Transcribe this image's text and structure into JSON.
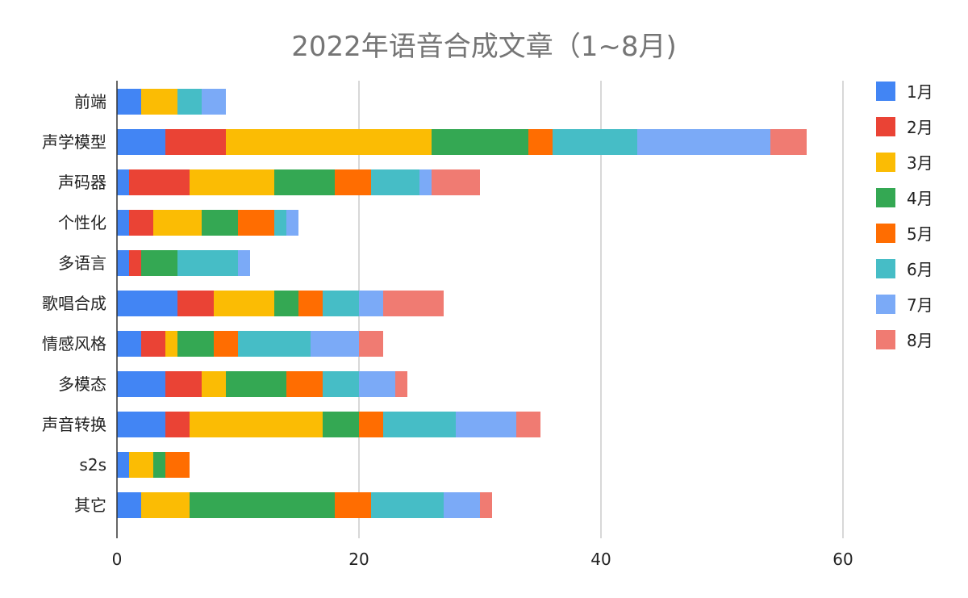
{
  "chart_data": {
    "type": "bar",
    "orientation": "horizontal",
    "stacked": true,
    "title": "2022年语音合成文章（1~8月)",
    "xlabel": "",
    "ylabel": "",
    "xlim": [
      0,
      60
    ],
    "x_ticks": [
      0,
      20,
      40,
      60
    ],
    "grid": true,
    "legend_position": "right",
    "categories": [
      "前端",
      "声学模型",
      "声码器",
      "个性化",
      "多语言",
      "歌唱合成",
      "情感风格",
      "多模态",
      "声音转换",
      "s2s",
      "其它"
    ],
    "series": [
      {
        "name": "1月",
        "color": "#4285F4",
        "values": [
          2,
          4,
          1,
          1,
          1,
          5,
          2,
          4,
          4,
          1,
          2
        ]
      },
      {
        "name": "2月",
        "color": "#EA4335",
        "values": [
          0,
          5,
          5,
          2,
          1,
          3,
          2,
          3,
          2,
          0,
          0
        ]
      },
      {
        "name": "3月",
        "color": "#FBBC04",
        "values": [
          3,
          17,
          7,
          4,
          0,
          5,
          1,
          2,
          11,
          2,
          4
        ]
      },
      {
        "name": "4月",
        "color": "#34A853",
        "values": [
          0,
          8,
          5,
          3,
          3,
          2,
          3,
          5,
          3,
          1,
          12
        ]
      },
      {
        "name": "5月",
        "color": "#FF6D01",
        "values": [
          0,
          2,
          3,
          3,
          0,
          2,
          2,
          3,
          2,
          2,
          3
        ]
      },
      {
        "name": "6月",
        "color": "#46BDC6",
        "values": [
          2,
          7,
          4,
          1,
          5,
          3,
          6,
          3,
          6,
          0,
          6
        ]
      },
      {
        "name": "7月",
        "color": "#7BAAF7",
        "values": [
          2,
          11,
          1,
          1,
          1,
          2,
          4,
          3,
          5,
          0,
          3
        ]
      },
      {
        "name": "8月",
        "color": "#F07B72",
        "values": [
          0,
          3,
          4,
          0,
          0,
          5,
          2,
          1,
          2,
          0,
          1
        ]
      }
    ]
  }
}
